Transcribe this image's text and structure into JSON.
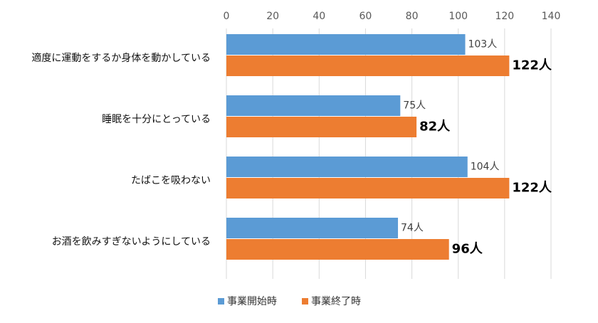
{
  "chart_data": {
    "type": "bar",
    "orientation": "horizontal",
    "categories": [
      "適度に運動をするか身体を動かしている",
      "睡眠を十分にとっている",
      "たばこを吸わない",
      "お酒を飲みすぎないようにしている"
    ],
    "series": [
      {
        "name": "事業開始時",
        "color": "#5B9BD5",
        "values": [
          103,
          75,
          104,
          74
        ],
        "labels": [
          "103人",
          "75人",
          "104人",
          "74人"
        ]
      },
      {
        "name": "事業終了時",
        "color": "#ED7D31",
        "values": [
          122,
          82,
          122,
          96
        ],
        "labels": [
          "122人",
          "82人",
          "122人",
          "96人"
        ]
      }
    ],
    "xlim": [
      0,
      140
    ],
    "xticks": [
      0,
      20,
      40,
      60,
      80,
      100,
      120,
      140
    ],
    "xtick_labels": [
      "0",
      "20",
      "40",
      "60",
      "80",
      "100",
      "120",
      "140"
    ],
    "grid": "vertical",
    "axis_position": "top",
    "legend_position": "bottom"
  }
}
